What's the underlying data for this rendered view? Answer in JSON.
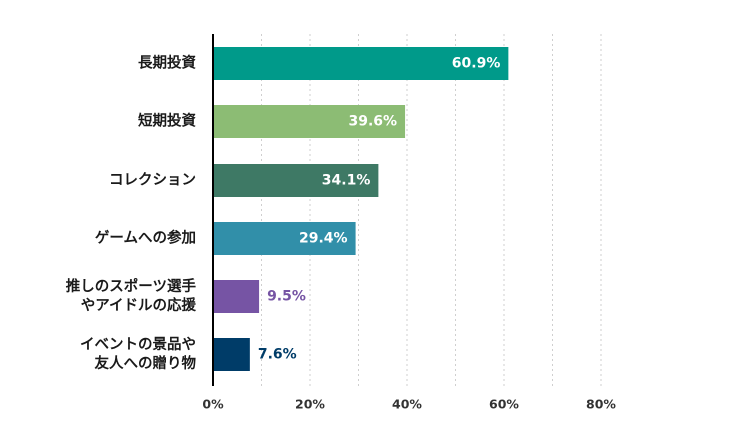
{
  "chart_data": {
    "type": "bar",
    "orientation": "horizontal",
    "categories": [
      [
        "長期投資"
      ],
      [
        "短期投資"
      ],
      [
        "コレクション"
      ],
      [
        "ゲームへの参加"
      ],
      [
        "推しのスポーツ選手",
        "やアイドルの応援"
      ],
      [
        "イベントの景品や",
        "友人への贈り物"
      ]
    ],
    "values": [
      60.9,
      39.6,
      34.1,
      29.4,
      9.5,
      7.6
    ],
    "value_labels": [
      "60.9%",
      "39.6%",
      "34.1%",
      "29.4%",
      "9.5%",
      "7.6%"
    ],
    "bar_colors": [
      "#009a8a",
      "#8cbc74",
      "#3e7965",
      "#318fa9",
      "#7654a4",
      "#003c68"
    ],
    "value_label_colors": [
      "#ffffff",
      "#ffffff",
      "#ffffff",
      "#ffffff",
      "#7654a4",
      "#003c68"
    ],
    "value_label_inside": [
      true,
      true,
      true,
      true,
      false,
      false
    ],
    "xlim": [
      0,
      80
    ],
    "x_ticks": [
      0,
      20,
      40,
      60,
      80
    ],
    "x_tick_labels": [
      "0%",
      "20%",
      "40%",
      "60%",
      "80%"
    ],
    "grid": "vertical-dashed",
    "legend": "none",
    "title": "",
    "xlabel": "",
    "ylabel": ""
  }
}
